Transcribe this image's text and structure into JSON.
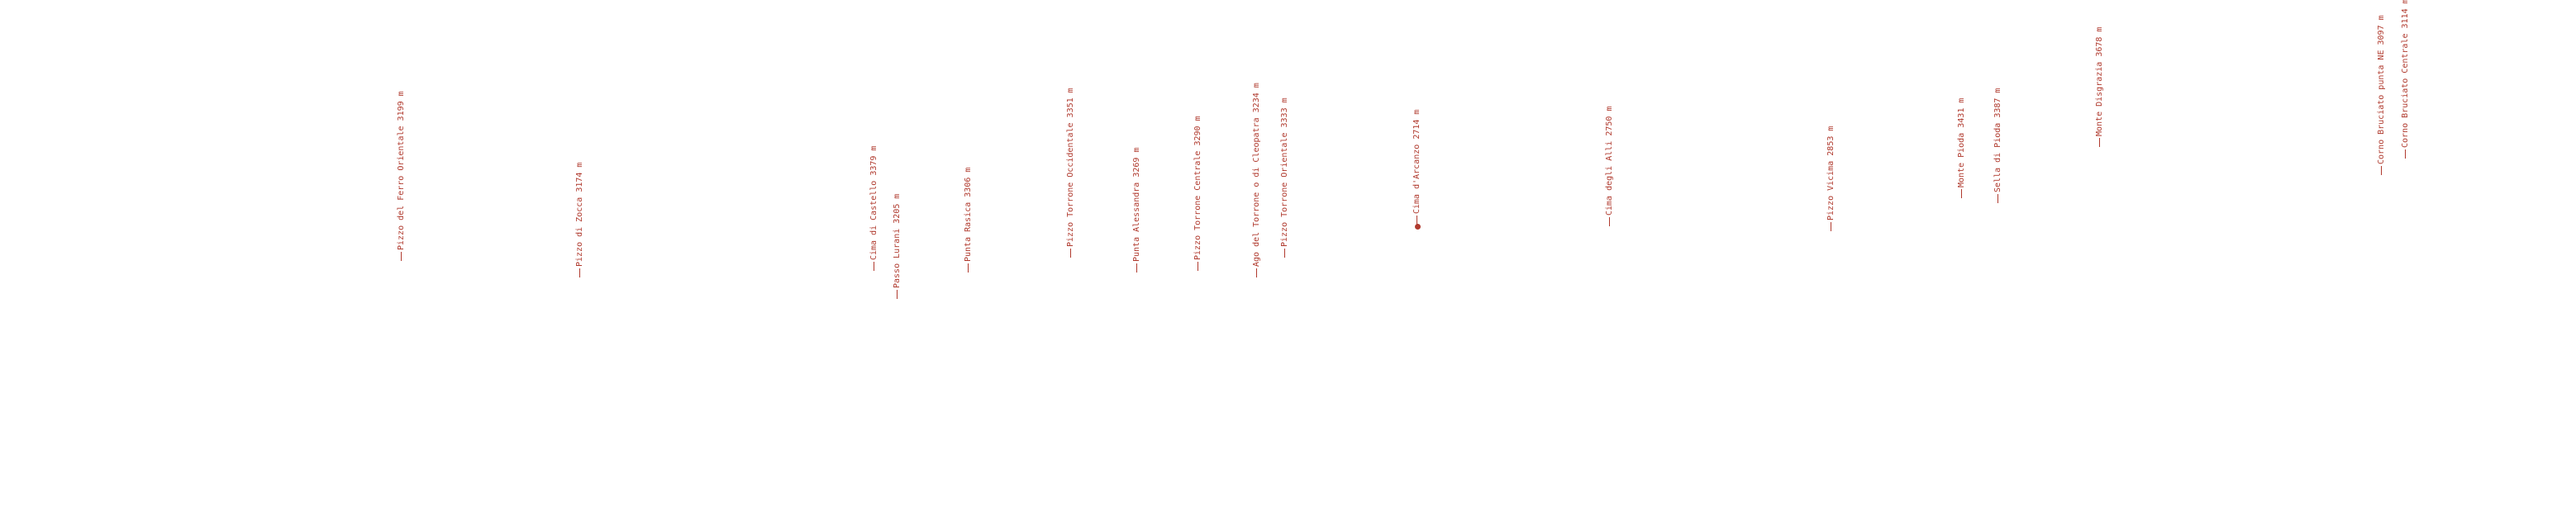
{
  "colors": {
    "label": "#b03a2e",
    "background": "#ffffff"
  },
  "peaks": [
    {
      "name": "Pizzo del Ferro Orientale",
      "elevation": "3199 m",
      "marker": "line"
    },
    {
      "name": "Pizzo di Zocca",
      "elevation": "3174 m",
      "marker": "line"
    },
    {
      "name": "Cima di Castello",
      "elevation": "3379 m",
      "marker": "line"
    },
    {
      "name": "Passo Lurani",
      "elevation": "3205 m",
      "marker": "line"
    },
    {
      "name": "Punta Rasica",
      "elevation": "3306 m",
      "marker": "line"
    },
    {
      "name": "Pizzo Torrone Occidentale",
      "elevation": "3351 m",
      "marker": "line"
    },
    {
      "name": "Punta Alessandra",
      "elevation": "3269 m",
      "marker": "line"
    },
    {
      "name": "Pizzo Torrone Centrale",
      "elevation": "3290 m",
      "marker": "line"
    },
    {
      "name": "Ago del Torrone o di Cleopatra",
      "elevation": "3234 m",
      "marker": "line"
    },
    {
      "name": "Pizzo Torrone Orientale",
      "elevation": "3333 m",
      "marker": "line"
    },
    {
      "name": "Cima d'Arcanzo",
      "elevation": "2714 m",
      "marker": "dot"
    },
    {
      "name": "Cima degli Alli",
      "elevation": "2750 m",
      "marker": "line"
    },
    {
      "name": "Pizzo Vicima",
      "elevation": "2853 m",
      "marker": "line"
    },
    {
      "name": "Monte Pioda",
      "elevation": "3431 m",
      "marker": "line"
    },
    {
      "name": "Sella di Pioda",
      "elevation": "3387 m",
      "marker": "line"
    },
    {
      "name": "Monte Disgrazia",
      "elevation": "3678 m",
      "marker": "line"
    },
    {
      "name": "Corno Bruciato punta NE",
      "elevation": "3097 m",
      "marker": "line"
    },
    {
      "name": "Corno Bruciato Centrale",
      "elevation": "3114 m",
      "marker": "line"
    }
  ]
}
